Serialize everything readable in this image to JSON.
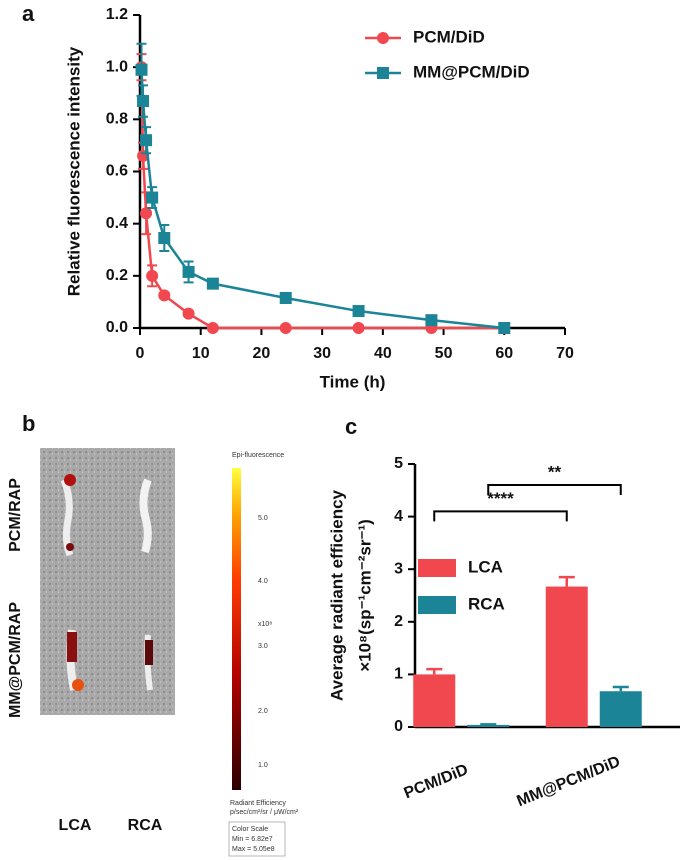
{
  "panel_labels": [
    "a",
    "b",
    "c"
  ],
  "chart_data": [
    {
      "type": "line",
      "xlabel": "Time (h)",
      "ylabel": [
        "Relative fluorescence intensity"
      ],
      "xlim": [
        0,
        70
      ],
      "xticks": [
        0,
        10,
        20,
        30,
        40,
        50,
        60,
        70
      ],
      "ylim": [
        0,
        1.2
      ],
      "yticks": [
        {
          "value": 0,
          "label": "0.0"
        },
        {
          "value": 0.2,
          "label": "0.2"
        },
        {
          "value": 0.4,
          "label": "0.4"
        },
        {
          "value": 0.6,
          "label": "0.6"
        },
        {
          "value": 0.8,
          "label": "0.8"
        },
        {
          "value": 1,
          "label": "1.0"
        },
        {
          "value": 1.2,
          "label": "1.2"
        }
      ],
      "legend": "upper right",
      "series": [
        {
          "name": "PCM/DiD",
          "color": "#f0484e",
          "marker": "circle",
          "x": [
            0.25,
            0.5,
            1,
            2,
            4,
            8,
            12,
            24,
            36,
            48,
            60
          ],
          "values": [
            1.0,
            0.66,
            0.44,
            0.2,
            0.125,
            0.055,
            0,
            0,
            0,
            0,
            0
          ],
          "errors": [
            0.05,
            0.05,
            0.08,
            0.04,
            0.01,
            0.01,
            0,
            0,
            0,
            0,
            0
          ]
        },
        {
          "name": "MM@PCM/DiD",
          "color": "#1b8496",
          "marker": "square",
          "x": [
            0.25,
            0.5,
            1,
            2,
            4,
            8,
            12,
            24,
            36,
            48,
            60
          ],
          "values": [
            0.99,
            0.87,
            0.72,
            0.5,
            0.345,
            0.215,
            0.17,
            0.115,
            0.065,
            0.03,
            0
          ],
          "errors": [
            0.1,
            0.06,
            0.05,
            0.04,
            0.05,
            0.04,
            0.01,
            0.01,
            0.01,
            0.01,
            0
          ]
        }
      ]
    },
    {
      "type": "bar",
      "ylabel": [
        "Average radiant efficiency",
        "×10⁸(sp⁻¹cm⁻²sr⁻¹)"
      ],
      "categories": [
        "PCM/DiD",
        "MM@PCM/DiD"
      ],
      "ylim": [
        0,
        5
      ],
      "yticks": [
        0,
        1,
        2,
        3,
        4,
        5
      ],
      "legend": "center left",
      "series": [
        {
          "name": "LCA",
          "color": "#f0484e",
          "values": [
            1.0,
            2.67
          ],
          "errors": [
            0.1,
            0.18
          ]
        },
        {
          "name": "RCA",
          "color": "#1b8496",
          "values": [
            0.04,
            0.68
          ],
          "errors": [
            0.01,
            0.08
          ]
        }
      ],
      "annotations": [
        {
          "label": "****",
          "y": 4.1
        },
        {
          "label": "**",
          "y": 4.6
        }
      ]
    }
  ],
  "image_panel": {
    "row_labels": [
      "PCM/RAP",
      "MM@PCM/RAP"
    ],
    "column_labels": [
      "LCA",
      "RCA"
    ],
    "colorbar": {
      "title": "Epi-fluorescence",
      "ticks": [
        "5.0",
        "4.0",
        "3.0",
        "2.0",
        "1.0"
      ],
      "unit": "x10⁸",
      "label": "Radiant Efficiency",
      "label_unit": "p/sec/cm²/sr / μW/cm²",
      "scale_title": "Color Scale",
      "min": "Min = 6.82e7",
      "max": "Max = 5.05e8"
    }
  }
}
